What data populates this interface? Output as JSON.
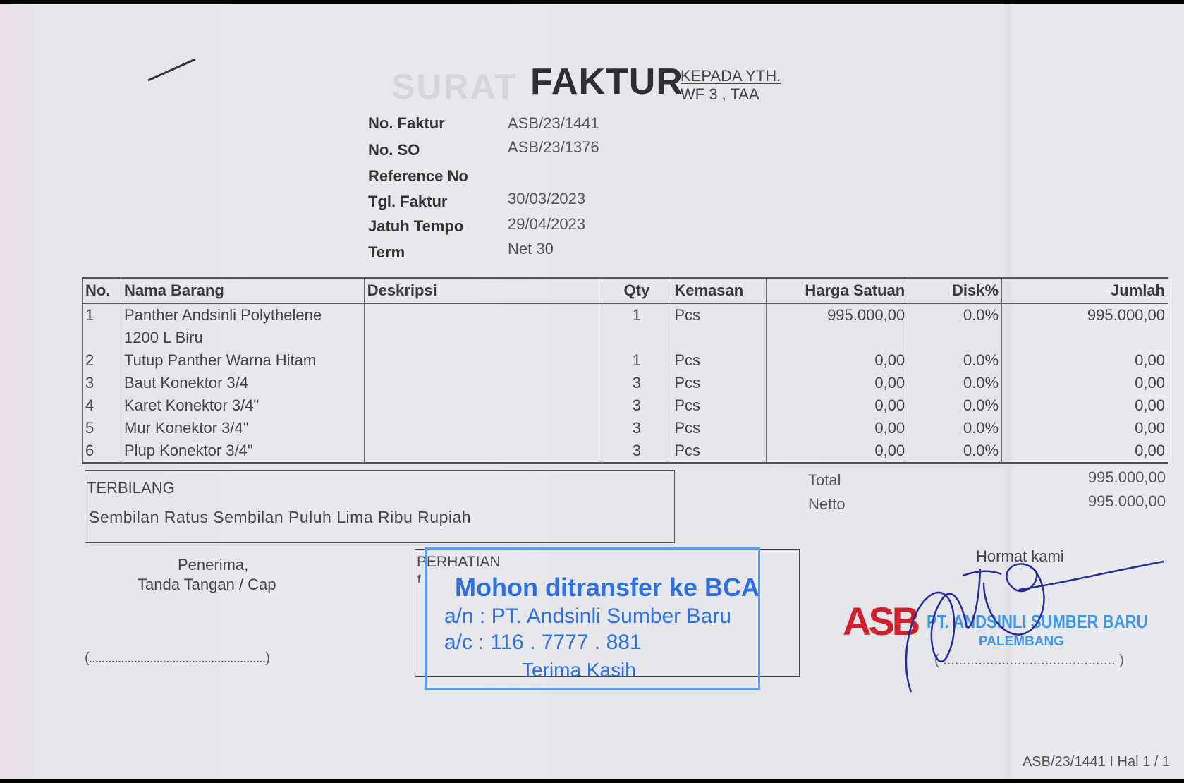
{
  "header": {
    "ghost_title": "SURAT",
    "title": "FAKTUR",
    "recipient_label": "KEPADA YTH.",
    "recipient": "WF 3 , TAA"
  },
  "info": [
    {
      "label": "No. Faktur",
      "value": "ASB/23/1441"
    },
    {
      "label": "No. SO",
      "value": "ASB/23/1376"
    },
    {
      "label": "Reference No",
      "value": ""
    },
    {
      "label": "Tgl. Faktur",
      "value": "30/03/2023"
    },
    {
      "label": "Jatuh Tempo",
      "value": "29/04/2023"
    },
    {
      "label": "Term",
      "value": "Net 30"
    }
  ],
  "table": {
    "columns": [
      "No.",
      "Nama Barang",
      "Deskripsi",
      "Qty",
      "Kemasan",
      "Harga Satuan",
      "Disk%",
      "Jumlah"
    ],
    "rows": [
      {
        "no": "1",
        "name": "Panther Andsinli Polythelene",
        "name2": "1200 L Biru",
        "desc": "",
        "qty": "1",
        "unit": "Pcs",
        "price": "995.000,00",
        "disc": "0.0%",
        "total": "995.000,00"
      },
      {
        "no": "2",
        "name": "Tutup Panther Warna Hitam",
        "desc": "",
        "qty": "1",
        "unit": "Pcs",
        "price": "0,00",
        "disc": "0.0%",
        "total": "0,00"
      },
      {
        "no": "3",
        "name": "Baut Konektor 3/4",
        "desc": "",
        "qty": "3",
        "unit": "Pcs",
        "price": "0,00",
        "disc": "0.0%",
        "total": "0,00"
      },
      {
        "no": "4",
        "name": "Karet Konektor 3/4\"",
        "desc": "",
        "qty": "3",
        "unit": "Pcs",
        "price": "0,00",
        "disc": "0.0%",
        "total": "0,00"
      },
      {
        "no": "5",
        "name": "Mur Konektor 3/4\"",
        "desc": "",
        "qty": "3",
        "unit": "Pcs",
        "price": "0,00",
        "disc": "0.0%",
        "total": "0,00"
      },
      {
        "no": "6",
        "name": "Plup Konektor 3/4\"",
        "desc": "",
        "qty": "3",
        "unit": "Pcs",
        "price": "0,00",
        "disc": "0.0%",
        "total": "0,00"
      }
    ]
  },
  "terbilang": {
    "label": "TERBILANG",
    "text": "Sembilan Ratus Sembilan Puluh Lima Ribu Rupiah"
  },
  "totals": {
    "total_label": "Total",
    "total_value": "995.000,00",
    "netto_label": "Netto",
    "netto_value": "995.000,00"
  },
  "receiver": {
    "line1": "Penerima,",
    "line2": "Tanda Tangan / Cap",
    "sign_line": "(.......................................................)"
  },
  "notice": {
    "label": "PERHATIAN",
    "mark": "f",
    "stamp_line1": "Mohon ditransfer ke BCA",
    "stamp_line2": "a/n : PT. Andsinli Sumber Baru",
    "stamp_line3": "a/c : 116 . 7777 . 881",
    "stamp_line4": "Terima Kasih",
    "stamp_color": "#2f6fe0"
  },
  "signatory": {
    "greeting": "Hormat kami",
    "logo_text": "ASB",
    "company": "PT. ANDSINLI SUMBER BARU",
    "city": "PALEMBANG",
    "sign_line": "( ............................................ )",
    "logo_color": "#d0202c",
    "signature_color": "#2a2a9a"
  },
  "footer": {
    "page_ref": "ASB/23/1441 I Hal 1 / 1"
  }
}
